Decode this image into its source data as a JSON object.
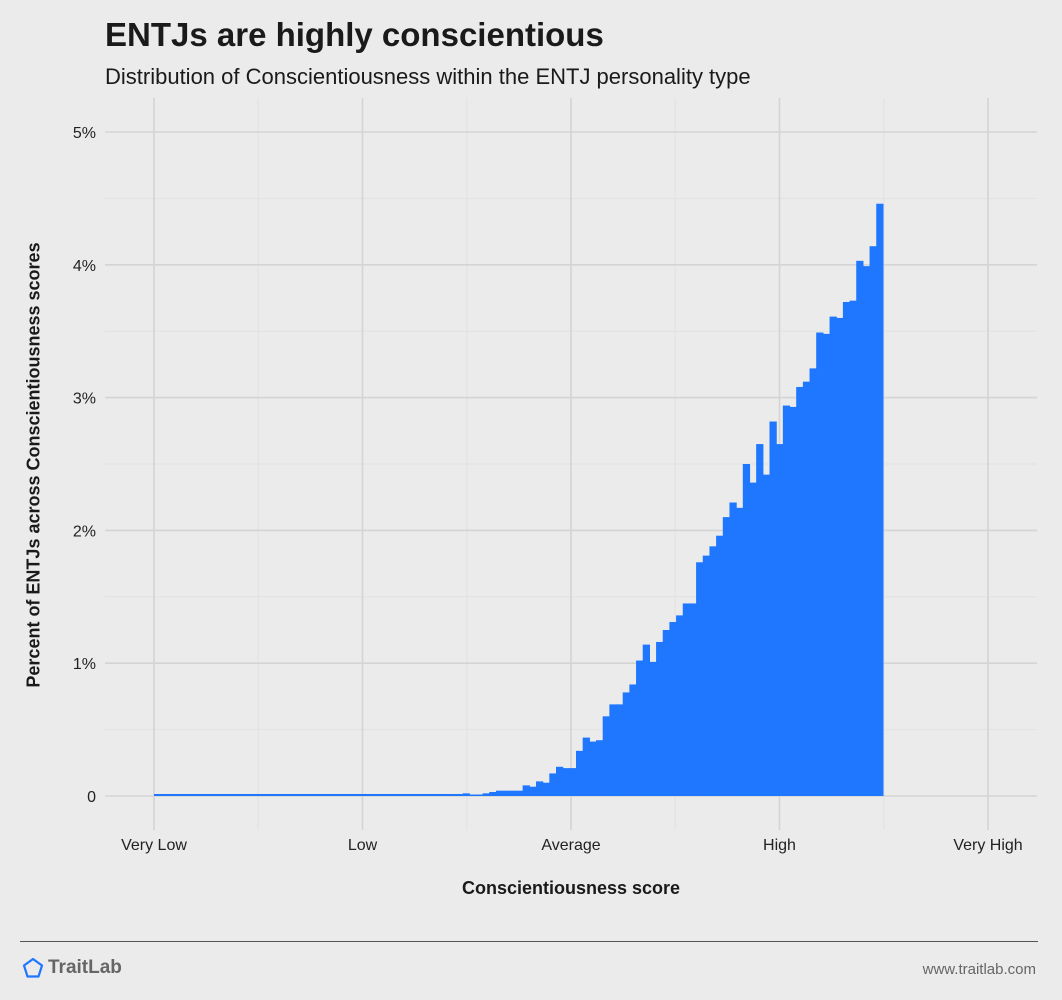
{
  "header": {
    "title": "ENTJs are highly conscientious",
    "subtitle": "Distribution of Conscientiousness within the ENTJ personality type"
  },
  "footer": {
    "brand": "TraitLab",
    "brand_icon": "pentagon-icon",
    "url": "www.traitlab.com"
  },
  "colors": {
    "background": "#ebebeb",
    "bar": "#1f77ff",
    "gridline": "#d4d4d4",
    "brand": "#1f77ff"
  },
  "chart_data": {
    "type": "bar",
    "title": "ENTJs are highly conscientious",
    "subtitle": "Distribution of Conscientiousness within the ENTJ personality type",
    "xlabel": "Conscientiousness score",
    "ylabel": "Percent of ENTJs across Conscientiousness scores",
    "x_range": [
      0,
      100
    ],
    "x_ticks": [
      {
        "value": 0,
        "label": "Very Low"
      },
      {
        "value": 25,
        "label": "Low"
      },
      {
        "value": 50,
        "label": "Average"
      },
      {
        "value": 75,
        "label": "High"
      },
      {
        "value": 100,
        "label": "Very High"
      }
    ],
    "ylim": [
      0,
      5
    ],
    "y_ticks": [
      {
        "value": 0,
        "label": "0"
      },
      {
        "value": 1,
        "label": "1%"
      },
      {
        "value": 2,
        "label": "2%"
      },
      {
        "value": 3,
        "label": "3%"
      },
      {
        "value": 4,
        "label": "4%"
      },
      {
        "value": 5,
        "label": "5%"
      }
    ],
    "grid": true,
    "bins_x_start": 37,
    "bin_width": 0.8,
    "values": [
      0.02,
      0.01,
      0.01,
      0.02,
      0.03,
      0.04,
      0.04,
      0.04,
      0.04,
      0.08,
      0.07,
      0.11,
      0.1,
      0.17,
      0.22,
      0.21,
      0.21,
      0.34,
      0.44,
      0.41,
      0.42,
      0.6,
      0.69,
      0.69,
      0.78,
      0.84,
      1.02,
      1.14,
      1.01,
      1.16,
      1.25,
      1.31,
      1.36,
      1.45,
      1.45,
      1.76,
      1.81,
      1.88,
      1.96,
      2.1,
      2.21,
      2.17,
      2.5,
      2.36,
      2.65,
      2.42,
      2.82,
      2.65,
      2.94,
      2.93,
      3.08,
      3.12,
      3.22,
      3.49,
      3.48,
      3.61,
      3.6,
      3.72,
      3.73,
      4.03,
      3.99,
      4.14,
      4.46
    ],
    "baseline_from": 0,
    "baseline_to": 37,
    "baseline_value": 0.0
  }
}
